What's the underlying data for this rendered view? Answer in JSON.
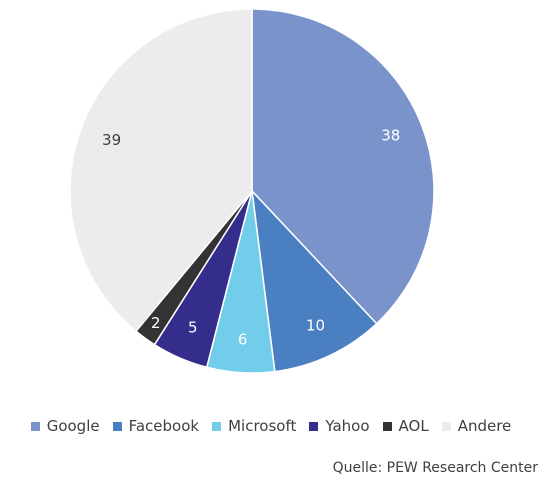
{
  "chart_data": {
    "type": "pie",
    "categories": [
      "Google",
      "Facebook",
      "Microsoft",
      "Yahoo",
      "AOL",
      "Andere"
    ],
    "values": [
      38,
      10,
      6,
      5,
      2,
      39
    ],
    "colors": [
      "#7b93cb",
      "#4a7fc1",
      "#72cdea",
      "#352d8c",
      "#333333",
      "#ececec"
    ],
    "legend": "bottom",
    "source": "Quelle: PEW Research Center"
  }
}
